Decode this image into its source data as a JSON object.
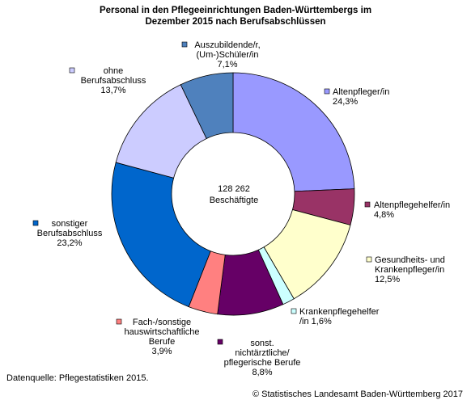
{
  "chart_data": {
    "type": "pie",
    "title_lines": [
      "Personal in den Pflegeeinrichtungen Baden-Württembergs im",
      "Dezember 2015 nach Berufsabschlüssen"
    ],
    "center_lines": [
      "128 262",
      "Beschäftigte"
    ],
    "unit": "%",
    "slices": [
      {
        "label_lines": [
          "Altenpfleger/in"
        ],
        "value_text": "24,3%",
        "value": 24.3,
        "color": "#9999ff"
      },
      {
        "label_lines": [
          "Altenpflegehelfer/in"
        ],
        "value_text": "4,8%",
        "value": 4.8,
        "color": "#993366"
      },
      {
        "label_lines": [
          "Gesundheits- und",
          "Krankenpfleger/in"
        ],
        "value_text": "12,5%",
        "value": 12.5,
        "color": "#ffffcc"
      },
      {
        "label_lines": [
          "Krankenpflegehelfer",
          "/in 1,6%"
        ],
        "value_text": "",
        "value": 1.6,
        "color": "#ccffff"
      },
      {
        "label_lines": [
          "sonst.",
          "nichtärztliche/",
          "pflegerische Berufe"
        ],
        "value_text": "8,8%",
        "value": 8.8,
        "color": "#660066"
      },
      {
        "label_lines": [
          "Fach-/sonstige",
          "hauswirtschaftliche",
          "Berufe"
        ],
        "value_text": "3,9%",
        "value": 3.9,
        "color": "#ff8080"
      },
      {
        "label_lines": [
          "sonstiger",
          "Berufsabschluss"
        ],
        "value_text": "23,2%",
        "value": 23.2,
        "color": "#0066cc"
      },
      {
        "label_lines": [
          "ohne",
          "Berufsabschluss"
        ],
        "value_text": "13,7%",
        "value": 13.7,
        "color": "#ccccff"
      },
      {
        "label_lines": [
          "Auszubildende/r,",
          "(Um-)Schüler/in"
        ],
        "value_text": "7,1%",
        "value": 7.1,
        "color": "#4f81bd"
      }
    ]
  },
  "footer": {
    "source": "Datenquelle: Pflegestatistiken 2015.",
    "copyright": "© Statistisches Landesamt Baden-Württemberg 2017"
  }
}
